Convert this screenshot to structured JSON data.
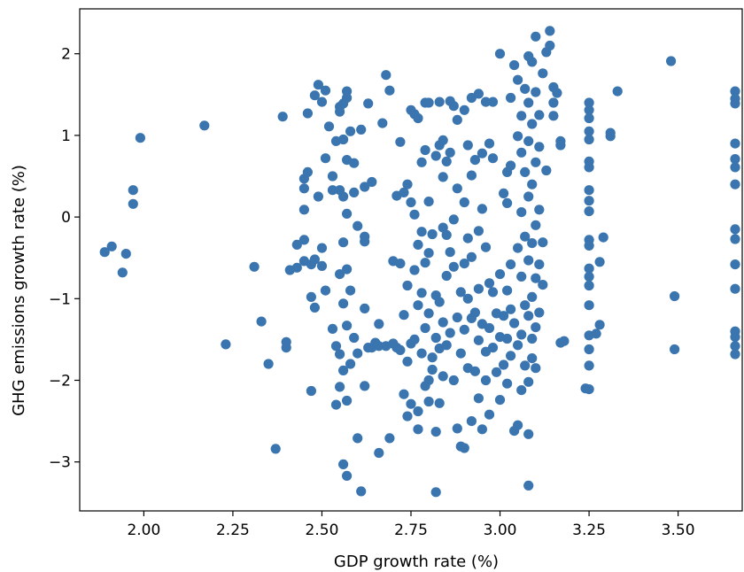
{
  "chart_data": {
    "type": "scatter",
    "xlabel": "GDP growth rate (%)",
    "ylabel": "GHG emissions growth rate (%)",
    "xlim": [
      1.82,
      3.68
    ],
    "ylim": [
      -3.6,
      2.55
    ],
    "xticks": [
      2.0,
      2.25,
      2.5,
      2.75,
      3.0,
      3.25,
      3.5
    ],
    "xtick_labels": [
      "2.00",
      "2.25",
      "2.50",
      "2.75",
      "3.00",
      "3.25",
      "3.50"
    ],
    "yticks": [
      -3,
      -2,
      -1,
      0,
      1,
      2
    ],
    "ytick_labels": [
      "−3",
      "−2",
      "−1",
      "0",
      "1",
      "2"
    ],
    "marker_color": "#3a75b0",
    "grid": false,
    "points": [
      [
        1.89,
        -0.43
      ],
      [
        1.91,
        -0.36
      ],
      [
        1.94,
        -0.68
      ],
      [
        1.95,
        -0.45
      ],
      [
        1.97,
        0.33
      ],
      [
        1.97,
        0.16
      ],
      [
        1.99,
        0.97
      ],
      [
        2.17,
        1.12
      ],
      [
        2.23,
        -1.56
      ],
      [
        2.31,
        -0.61
      ],
      [
        2.33,
        -1.28
      ],
      [
        2.35,
        -1.8
      ],
      [
        2.37,
        -2.84
      ],
      [
        2.39,
        1.23
      ],
      [
        2.4,
        -1.53
      ],
      [
        2.4,
        -1.6
      ],
      [
        2.41,
        -0.65
      ],
      [
        2.43,
        -0.34
      ],
      [
        2.43,
        -0.62
      ],
      [
        2.45,
        0.47
      ],
      [
        2.45,
        0.35
      ],
      [
        2.45,
        0.09
      ],
      [
        2.45,
        -0.28
      ],
      [
        2.45,
        -0.54
      ],
      [
        2.46,
        0.55
      ],
      [
        2.46,
        1.27
      ],
      [
        2.47,
        -0.58
      ],
      [
        2.47,
        -0.98
      ],
      [
        2.47,
        -2.13
      ],
      [
        2.48,
        -0.52
      ],
      [
        2.48,
        1.49
      ],
      [
        2.48,
        -1.11
      ],
      [
        2.49,
        1.62
      ],
      [
        2.49,
        0.25
      ],
      [
        2.5,
        1.41
      ],
      [
        2.5,
        -0.6
      ],
      [
        2.5,
        -0.38
      ],
      [
        2.51,
        1.55
      ],
      [
        2.51,
        0.72
      ],
      [
        2.51,
        -0.9
      ],
      [
        2.52,
        1.11
      ],
      [
        2.53,
        0.5
      ],
      [
        2.53,
        0.33
      ],
      [
        2.53,
        -1.37
      ],
      [
        2.54,
        0.93
      ],
      [
        2.54,
        -1.58
      ],
      [
        2.54,
        -2.3
      ],
      [
        2.55,
        1.35
      ],
      [
        2.55,
        1.29
      ],
      [
        2.55,
        0.33
      ],
      [
        2.55,
        -0.7
      ],
      [
        2.55,
        -1.68
      ],
      [
        2.55,
        -2.08
      ],
      [
        2.56,
        1.39
      ],
      [
        2.56,
        0.95
      ],
      [
        2.56,
        0.25
      ],
      [
        2.56,
        -0.31
      ],
      [
        2.56,
        -1.06
      ],
      [
        2.56,
        -1.88
      ],
      [
        2.56,
        -3.03
      ],
      [
        2.57,
        1.54
      ],
      [
        2.57,
        1.46
      ],
      [
        2.57,
        0.7
      ],
      [
        2.57,
        0.04
      ],
      [
        2.57,
        -0.64
      ],
      [
        2.57,
        -1.33
      ],
      [
        2.57,
        -2.25
      ],
      [
        2.57,
        -3.17
      ],
      [
        2.58,
        1.05
      ],
      [
        2.58,
        -0.9
      ],
      [
        2.58,
        -1.8
      ],
      [
        2.59,
        0.66
      ],
      [
        2.59,
        0.3
      ],
      [
        2.59,
        -1.48
      ],
      [
        2.6,
        -0.11
      ],
      [
        2.6,
        -1.67
      ],
      [
        2.6,
        -2.71
      ],
      [
        2.61,
        -3.36
      ],
      [
        2.61,
        1.07
      ],
      [
        2.62,
        0.37
      ],
      [
        2.62,
        -0.24
      ],
      [
        2.62,
        -0.3
      ],
      [
        2.62,
        -1.12
      ],
      [
        2.62,
        -2.07
      ],
      [
        2.63,
        1.39
      ],
      [
        2.63,
        -1.6
      ],
      [
        2.64,
        0.43
      ],
      [
        2.64,
        -1.6
      ],
      [
        2.65,
        -1.54
      ],
      [
        2.66,
        -1.58
      ],
      [
        2.66,
        -2.89
      ],
      [
        2.66,
        -1.31
      ],
      [
        2.67,
        1.15
      ],
      [
        2.68,
        1.74
      ],
      [
        2.68,
        -1.58
      ],
      [
        2.69,
        1.55
      ],
      [
        2.69,
        -2.71
      ],
      [
        2.7,
        -0.54
      ],
      [
        2.7,
        -1.55
      ],
      [
        2.71,
        0.26
      ],
      [
        2.71,
        -1.6
      ],
      [
        2.72,
        -1.63
      ],
      [
        2.72,
        0.92
      ],
      [
        2.72,
        -0.57
      ],
      [
        2.73,
        0.3
      ],
      [
        2.73,
        -1.2
      ],
      [
        2.73,
        -2.17
      ],
      [
        2.74,
        0.4
      ],
      [
        2.74,
        -0.84
      ],
      [
        2.74,
        -1.77
      ],
      [
        2.74,
        -2.44
      ],
      [
        2.75,
        1.31
      ],
      [
        2.75,
        0.18
      ],
      [
        2.75,
        -1.55
      ],
      [
        2.75,
        -2.29
      ],
      [
        2.76,
        1.26
      ],
      [
        2.76,
        0.03
      ],
      [
        2.76,
        -0.65
      ],
      [
        2.76,
        -1.5
      ],
      [
        2.77,
        -2.6
      ],
      [
        2.77,
        -2.38
      ],
      [
        2.77,
        1.21
      ],
      [
        2.77,
        -0.34
      ],
      [
        2.77,
        -1.08
      ],
      [
        2.78,
        0.67
      ],
      [
        2.78,
        -0.18
      ],
      [
        2.78,
        -0.93
      ],
      [
        2.78,
        -1.67
      ],
      [
        2.79,
        1.4
      ],
      [
        2.79,
        0.82
      ],
      [
        2.79,
        -0.56
      ],
      [
        2.79,
        -1.36
      ],
      [
        2.79,
        -2.07
      ],
      [
        2.8,
        1.4
      ],
      [
        2.8,
        0.19
      ],
      [
        2.8,
        -0.44
      ],
      [
        2.8,
        -1.18
      ],
      [
        2.8,
        -2.0
      ],
      [
        2.8,
        -2.26
      ],
      [
        2.81,
        -0.21
      ],
      [
        2.81,
        -1.72
      ],
      [
        2.81,
        -1.87
      ],
      [
        2.82,
        0.75
      ],
      [
        2.82,
        -0.96
      ],
      [
        2.82,
        -1.48
      ],
      [
        2.82,
        -2.63
      ],
      [
        2.82,
        -3.37
      ],
      [
        2.83,
        1.41
      ],
      [
        2.83,
        0.88
      ],
      [
        2.83,
        -1.04
      ],
      [
        2.83,
        -1.61
      ],
      [
        2.83,
        -2.28
      ],
      [
        2.84,
        0.94
      ],
      [
        2.84,
        0.49
      ],
      [
        2.84,
        -0.13
      ],
      [
        2.84,
        -1.29
      ],
      [
        2.84,
        -1.95
      ],
      [
        2.85,
        0.68
      ],
      [
        2.85,
        -0.22
      ],
      [
        2.85,
        -0.72
      ],
      [
        2.85,
        -1.57
      ],
      [
        2.86,
        1.42
      ],
      [
        2.86,
        0.79
      ],
      [
        2.86,
        -0.43
      ],
      [
        2.86,
        -1.42
      ],
      [
        2.87,
        1.36
      ],
      [
        2.87,
        -0.03
      ],
      [
        2.87,
        -0.61
      ],
      [
        2.87,
        -2.0
      ],
      [
        2.88,
        1.19
      ],
      [
        2.88,
        0.35
      ],
      [
        2.88,
        -1.23
      ],
      [
        2.88,
        -2.59
      ],
      [
        2.89,
        -0.92
      ],
      [
        2.89,
        -1.67
      ],
      [
        2.89,
        -2.81
      ],
      [
        2.9,
        1.31
      ],
      [
        2.9,
        0.18
      ],
      [
        2.9,
        -0.57
      ],
      [
        2.9,
        -1.38
      ],
      [
        2.9,
        -2.83
      ],
      [
        2.91,
        0.88
      ],
      [
        2.91,
        -0.26
      ],
      [
        2.91,
        -1.0
      ],
      [
        2.91,
        -1.85
      ],
      [
        2.92,
        1.46
      ],
      [
        2.92,
        0.51
      ],
      [
        2.92,
        -0.49
      ],
      [
        2.92,
        -1.24
      ],
      [
        2.92,
        -2.5
      ],
      [
        2.93,
        0.7
      ],
      [
        2.93,
        -1.17
      ],
      [
        2.93,
        -1.89
      ],
      [
        2.94,
        1.51
      ],
      [
        2.94,
        -0.17
      ],
      [
        2.94,
        -0.88
      ],
      [
        2.94,
        -1.51
      ],
      [
        2.94,
        -2.22
      ],
      [
        2.95,
        0.78
      ],
      [
        2.95,
        0.1
      ],
      [
        2.95,
        -1.31
      ],
      [
        2.95,
        -2.6
      ],
      [
        2.96,
        1.41
      ],
      [
        2.96,
        -0.37
      ],
      [
        2.96,
        -1.65
      ],
      [
        2.96,
        -2.0
      ],
      [
        2.97,
        0.9
      ],
      [
        2.97,
        -0.81
      ],
      [
        2.97,
        -1.36
      ],
      [
        2.97,
        -2.42
      ],
      [
        2.98,
        1.41
      ],
      [
        2.98,
        0.72
      ],
      [
        2.98,
        -0.92
      ],
      [
        2.98,
        -1.6
      ],
      [
        2.99,
        -1.18
      ],
      [
        2.99,
        -1.9
      ],
      [
        3.0,
        2.0
      ],
      [
        3.0,
        -0.7
      ],
      [
        3.0,
        -1.47
      ],
      [
        3.0,
        -2.24
      ],
      [
        3.01,
        0.29
      ],
      [
        3.01,
        -1.21
      ],
      [
        3.01,
        -1.81
      ],
      [
        3.02,
        0.55
      ],
      [
        3.02,
        0.17
      ],
      [
        3.02,
        -0.9
      ],
      [
        3.02,
        -1.49
      ],
      [
        3.02,
        -2.04
      ],
      [
        3.03,
        1.46
      ],
      [
        3.03,
        0.63
      ],
      [
        3.03,
        -0.58
      ],
      [
        3.03,
        -1.13
      ],
      [
        3.03,
        -1.7
      ],
      [
        3.04,
        1.86
      ],
      [
        3.04,
        -1.3
      ],
      [
        3.04,
        -2.62
      ],
      [
        3.05,
        1.68
      ],
      [
        3.05,
        0.99
      ],
      [
        3.05,
        -0.38
      ],
      [
        3.05,
        -1.57
      ],
      [
        3.05,
        -2.55
      ],
      [
        3.06,
        1.24
      ],
      [
        3.06,
        0.79
      ],
      [
        3.06,
        0.06
      ],
      [
        3.06,
        -0.73
      ],
      [
        3.06,
        -1.44
      ],
      [
        3.06,
        -2.12
      ],
      [
        3.07,
        1.57
      ],
      [
        3.07,
        0.55
      ],
      [
        3.07,
        -0.24
      ],
      [
        3.07,
        -1.08
      ],
      [
        3.07,
        -1.82
      ],
      [
        3.08,
        1.97
      ],
      [
        3.08,
        1.4
      ],
      [
        3.08,
        0.93
      ],
      [
        3.08,
        0.25
      ],
      [
        3.08,
        -0.53
      ],
      [
        3.08,
        -1.21
      ],
      [
        3.08,
        -2.02
      ],
      [
        3.08,
        -2.66
      ],
      [
        3.08,
        -3.29
      ],
      [
        3.09,
        1.9
      ],
      [
        3.09,
        1.14
      ],
      [
        3.09,
        0.4
      ],
      [
        3.09,
        -0.32
      ],
      [
        3.09,
        -0.98
      ],
      [
        3.09,
        -1.49
      ],
      [
        3.09,
        -1.73
      ],
      [
        3.1,
        2.21
      ],
      [
        3.1,
        1.53
      ],
      [
        3.1,
        0.67
      ],
      [
        3.1,
        -0.1
      ],
      [
        3.1,
        -0.75
      ],
      [
        3.1,
        -1.35
      ],
      [
        3.1,
        -1.85
      ],
      [
        3.11,
        1.25
      ],
      [
        3.11,
        0.86
      ],
      [
        3.11,
        0.09
      ],
      [
        3.11,
        -0.58
      ],
      [
        3.11,
        -1.17
      ],
      [
        3.12,
        1.76
      ],
      [
        3.12,
        -0.31
      ],
      [
        3.12,
        -0.83
      ],
      [
        3.13,
        2.02
      ],
      [
        3.13,
        0.57
      ],
      [
        3.14,
        2.28
      ],
      [
        3.14,
        2.1
      ],
      [
        3.15,
        1.59
      ],
      [
        3.15,
        1.4
      ],
      [
        3.15,
        1.24
      ],
      [
        3.16,
        1.52
      ],
      [
        3.17,
        0.88
      ],
      [
        3.17,
        0.93
      ],
      [
        3.17,
        -1.54
      ],
      [
        3.18,
        -1.52
      ],
      [
        3.24,
        -2.1
      ],
      [
        3.25,
        1.4
      ],
      [
        3.25,
        1.31
      ],
      [
        3.25,
        1.21
      ],
      [
        3.25,
        1.05
      ],
      [
        3.25,
        0.95
      ],
      [
        3.25,
        0.68
      ],
      [
        3.25,
        0.61
      ],
      [
        3.25,
        0.33
      ],
      [
        3.25,
        0.2
      ],
      [
        3.25,
        0.07
      ],
      [
        3.25,
        -0.28
      ],
      [
        3.25,
        -0.35
      ],
      [
        3.25,
        -0.63
      ],
      [
        3.25,
        -0.73
      ],
      [
        3.25,
        -0.84
      ],
      [
        3.25,
        -1.08
      ],
      [
        3.25,
        -1.45
      ],
      [
        3.25,
        -1.62
      ],
      [
        3.25,
        -1.82
      ],
      [
        3.25,
        -2.11
      ],
      [
        3.27,
        -1.43
      ],
      [
        3.28,
        -0.55
      ],
      [
        3.28,
        -1.32
      ],
      [
        3.29,
        -0.25
      ],
      [
        3.31,
        1.03
      ],
      [
        3.31,
        0.99
      ],
      [
        3.33,
        1.54
      ],
      [
        3.48,
        1.91
      ],
      [
        3.49,
        -0.97
      ],
      [
        3.49,
        -1.62
      ],
      [
        3.66,
        1.54
      ],
      [
        3.66,
        1.45
      ],
      [
        3.66,
        1.39
      ],
      [
        3.66,
        0.9
      ],
      [
        3.66,
        0.71
      ],
      [
        3.66,
        0.61
      ],
      [
        3.66,
        0.4
      ],
      [
        3.66,
        -0.15
      ],
      [
        3.66,
        -0.27
      ],
      [
        3.66,
        -0.58
      ],
      [
        3.66,
        -0.88
      ],
      [
        3.66,
        -1.4
      ],
      [
        3.66,
        -1.47
      ],
      [
        3.66,
        -1.58
      ],
      [
        3.66,
        -1.68
      ]
    ]
  }
}
